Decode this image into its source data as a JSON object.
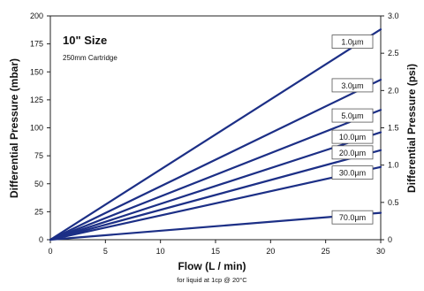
{
  "chart_data": {
    "type": "line",
    "title": "10\" Size",
    "subtitle": "250mm Cartridge",
    "xlabel": "Flow (L / min)",
    "xlabel_note": "for liquid at 1cp @ 20°C",
    "ylabel": "Differential Pressure (mbar)",
    "y2label": "Differential Pressure (psi)",
    "xlim": [
      0,
      30
    ],
    "ylim": [
      0,
      200
    ],
    "y2lim": [
      0,
      3.0
    ],
    "xticks": [
      "0",
      "5",
      "10",
      "15",
      "20",
      "25",
      "30"
    ],
    "yticks": [
      "0",
      "25",
      "50",
      "75",
      "100",
      "125",
      "150",
      "175",
      "200"
    ],
    "y2ticks": [
      "0",
      "0.5",
      "1.0",
      "1.5",
      "2.0",
      "2.5",
      "3.0"
    ],
    "grid": false,
    "series": [
      {
        "name": "1.0µm",
        "x": [
          0,
          30
        ],
        "y": [
          0,
          188
        ]
      },
      {
        "name": "3.0µm",
        "x": [
          0,
          30
        ],
        "y": [
          0,
          143
        ]
      },
      {
        "name": "5.0µm",
        "x": [
          0,
          30
        ],
        "y": [
          0,
          116
        ]
      },
      {
        "name": "10.0µm",
        "x": [
          0,
          30
        ],
        "y": [
          0,
          96
        ]
      },
      {
        "name": "20.0µm",
        "x": [
          0,
          30
        ],
        "y": [
          0,
          80
        ]
      },
      {
        "name": "30.0µm",
        "x": [
          0,
          30
        ],
        "y": [
          0,
          65
        ]
      },
      {
        "name": "70.0µm",
        "x": [
          0,
          30
        ],
        "y": [
          0,
          24
        ]
      }
    ],
    "label_y": [
      177,
      138,
      111,
      92,
      78,
      60,
      20
    ],
    "line_color": "#1c2f86"
  }
}
